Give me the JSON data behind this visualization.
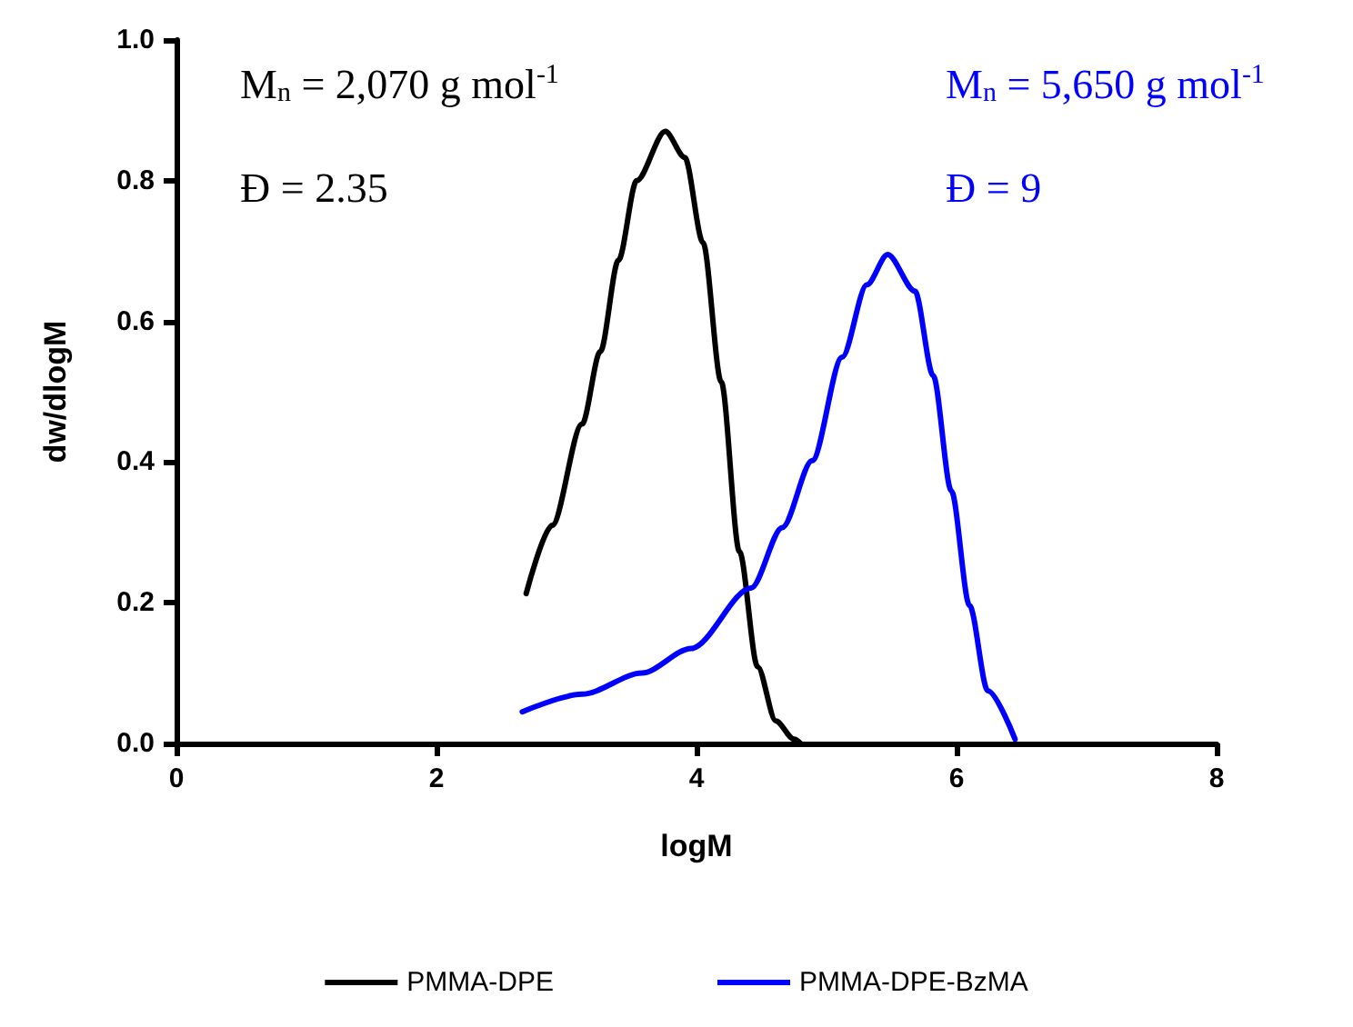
{
  "chart_data": {
    "type": "line",
    "xlabel": "logM",
    "ylabel": "dw/dlogM",
    "xlim": [
      0,
      8
    ],
    "xticks": [
      0,
      2,
      4,
      6,
      8
    ],
    "ylim": [
      0,
      1
    ],
    "yticks": [
      {
        "value": 0,
        "label": "0.0"
      },
      {
        "value": 0.2,
        "label": "0.2"
      },
      {
        "value": 0.4,
        "label": "0.4"
      },
      {
        "value": 0.6,
        "label": "0.6"
      },
      {
        "value": 0.8,
        "label": "0.8"
      },
      {
        "value": 1,
        "label": "1.0"
      }
    ],
    "grid": false,
    "legend": "bottom",
    "marker": "none",
    "line_style": "solid",
    "annotations": [
      "M$_{n}$ = 2,070 g mol$^{-1}$",
      "Đ = 2.35",
      "M$_{n}$ = 5,650 g mol$^{-1}$",
      "Đ = 9"
    ],
    "series": [
      {
        "name": "PMMA-DPE",
        "color": "#000000",
        "x": [
          2.69,
          2.89,
          3.12,
          3.26,
          3.4,
          3.54,
          3.76,
          3.91,
          4.05,
          4.19,
          4.33,
          4.47,
          4.61,
          4.75,
          4.8
        ],
        "values": [
          0.213,
          0.31,
          0.454,
          0.557,
          0.687,
          0.8,
          0.87,
          0.833,
          0.712,
          0.514,
          0.273,
          0.109,
          0.032,
          0.006,
          0
        ]
      },
      {
        "name": "PMMA-DPE-BzMA",
        "color": "#0000ff",
        "x": [
          2.66,
          3.12,
          3.58,
          3.96,
          4.42,
          4.66,
          4.89,
          5.12,
          5.31,
          5.47,
          5.68,
          5.82,
          5.96,
          6.1,
          6.24,
          6.45
        ],
        "values": [
          0.045,
          0.07,
          0.1,
          0.135,
          0.221,
          0.307,
          0.402,
          0.549,
          0.652,
          0.695,
          0.643,
          0.523,
          0.359,
          0.196,
          0.075,
          0.006
        ]
      }
    ]
  }
}
